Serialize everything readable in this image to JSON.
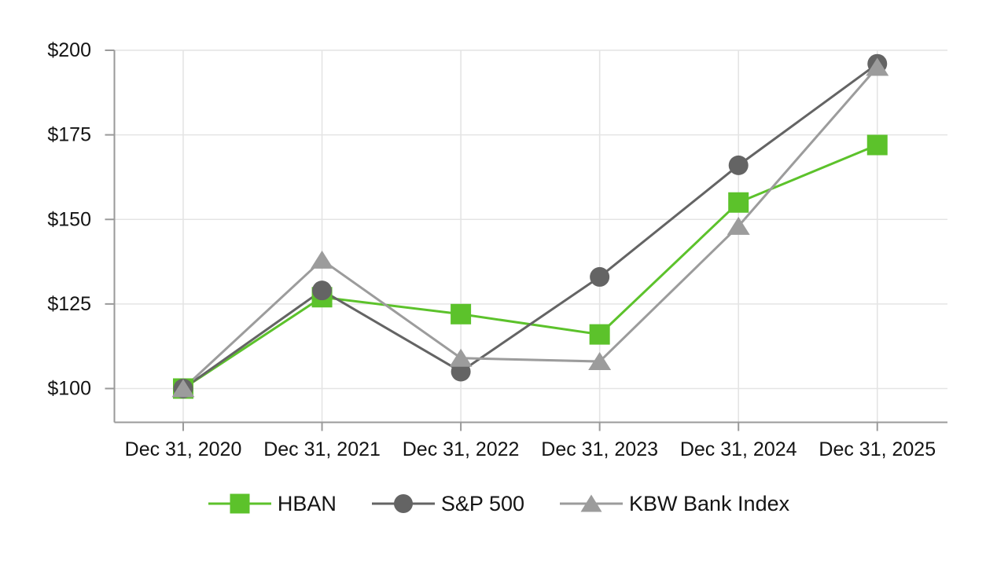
{
  "chart_data": {
    "type": "line",
    "title": "",
    "xlabel": "",
    "ylabel": "",
    "categories": [
      "Dec 31, 2020",
      "Dec 31, 2021",
      "Dec 31, 2022",
      "Dec 31, 2023",
      "Dec 31, 2024",
      "Dec 31, 2025"
    ],
    "series": [
      {
        "name": "HBAN",
        "marker": "square",
        "color": "#5CC22B",
        "values": [
          100,
          127,
          122,
          116,
          155,
          172
        ]
      },
      {
        "name": "S&P 500",
        "marker": "circle",
        "color": "#646464",
        "values": [
          100,
          129,
          105,
          133,
          166,
          196
        ]
      },
      {
        "name": "KBW Bank Index",
        "marker": "triangle",
        "color": "#9C9C9C",
        "values": [
          100,
          138,
          109,
          108,
          148,
          195
        ]
      }
    ],
    "y_ticks": [
      100,
      125,
      150,
      175,
      200
    ],
    "y_tick_labels": [
      "$100",
      "$125",
      "$150",
      "$175",
      "$200"
    ],
    "ylim": [
      90,
      200
    ],
    "grid": true,
    "legend_position": "bottom",
    "axis_color": "#9A9A9A",
    "grid_color": "#E4E4E4"
  }
}
